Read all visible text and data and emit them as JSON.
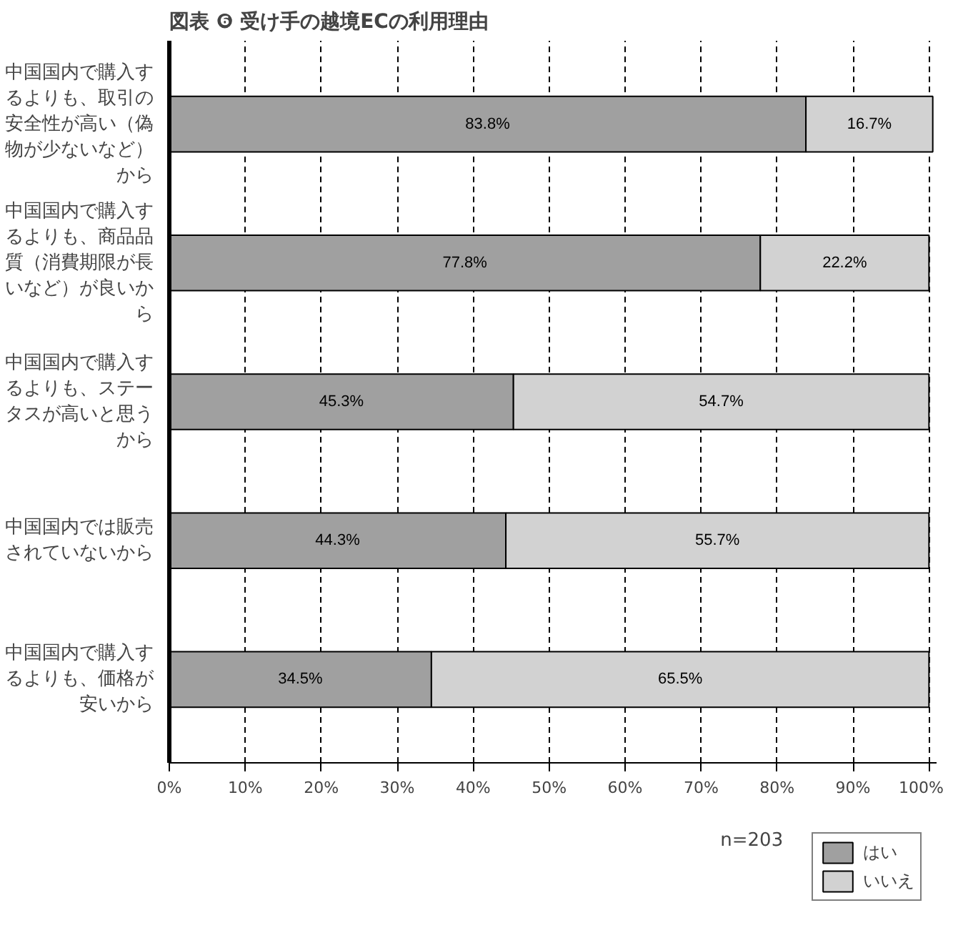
{
  "chart_data": {
    "type": "bar",
    "orientation": "horizontal",
    "stacked": true,
    "title": "図表 ❻ 受け手の越境ECの利用理由",
    "categories": [
      "中国国内で購入するよりも、取引の安全性が高い（偽物が少ないなど）から",
      "中国国内で購入するよりも、商品品質（消費期限が長いなど）が良いから",
      "中国国内で購入するよりも、ステータスが高いと思うから",
      "中国国内では販売されていないから",
      "中国国内で購入するよりも、価格が安いから"
    ],
    "series": [
      {
        "name": "はい",
        "color": "#a0a0a0",
        "values": [
          83.8,
          77.8,
          45.3,
          44.3,
          34.5
        ],
        "value_labels": [
          "83.8%",
          "77.8%",
          "45.3%",
          "44.3%",
          "34.5%"
        ]
      },
      {
        "name": "いいえ",
        "color": "#d2d2d2",
        "values": [
          16.7,
          22.2,
          54.7,
          55.7,
          65.5
        ],
        "value_labels": [
          "16.7%",
          "22.2%",
          "54.7%",
          "55.7%",
          "65.5%"
        ]
      }
    ],
    "xlim": [
      0,
      101
    ],
    "xticks": [
      {
        "value": 0,
        "label": "0%"
      },
      {
        "value": 10,
        "label": "10%"
      },
      {
        "value": 20,
        "label": "20%"
      },
      {
        "value": 30,
        "label": "30%"
      },
      {
        "value": 40,
        "label": "40%"
      },
      {
        "value": 50,
        "label": "50%"
      },
      {
        "value": 60,
        "label": "60%"
      },
      {
        "value": 70,
        "label": "70%"
      },
      {
        "value": 80,
        "label": "80%"
      },
      {
        "value": 90,
        "label": "90%"
      },
      {
        "value": 100,
        "label": "100%"
      }
    ],
    "grid": "x",
    "legend": "bottom right",
    "annotations": [
      "n=203"
    ]
  }
}
